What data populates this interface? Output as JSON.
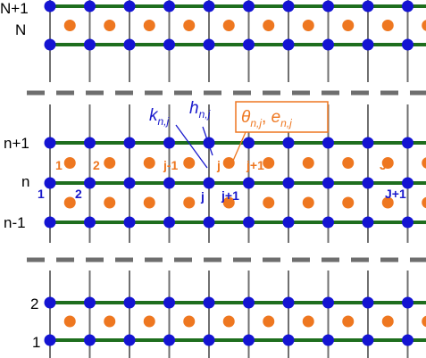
{
  "colors": {
    "node": "#1414d2",
    "horizontal_line": "#1e6e1e",
    "vertical_line": "#707070",
    "cell_center": "#ee7720",
    "break_dash": "#6e6e6e",
    "blue_text": "#1a1acc",
    "orange_text": "#ee7720"
  },
  "grid": {
    "columns": 10,
    "sections": [
      {
        "rows": 2
      },
      {
        "rows": 3
      },
      {
        "rows": 2
      }
    ]
  },
  "row_labels": {
    "top_upper": "N+1",
    "top_lower": "N",
    "mid_upper": "n+1",
    "mid_middle": "n",
    "mid_lower": "n-1",
    "bot_upper": "2",
    "bot_lower": "1"
  },
  "node_labels": {
    "first": "1",
    "second": "2",
    "j": "j",
    "j_plus_1": "j+1",
    "last": "J+1"
  },
  "cell_labels": {
    "first": "1",
    "second": "2",
    "j_minus_1": "j-1",
    "j": "j",
    "j_plus_1": "j+1",
    "last": "J"
  },
  "callouts": {
    "k": {
      "symbol": "k",
      "subscript": "n,j"
    },
    "h": {
      "symbol": "h",
      "subscript": "n,j"
    },
    "theta": {
      "symbol": "θ",
      "subscript": "n,j"
    },
    "separator": ", ",
    "e": {
      "symbol": "e",
      "subscript": "n,j"
    }
  }
}
